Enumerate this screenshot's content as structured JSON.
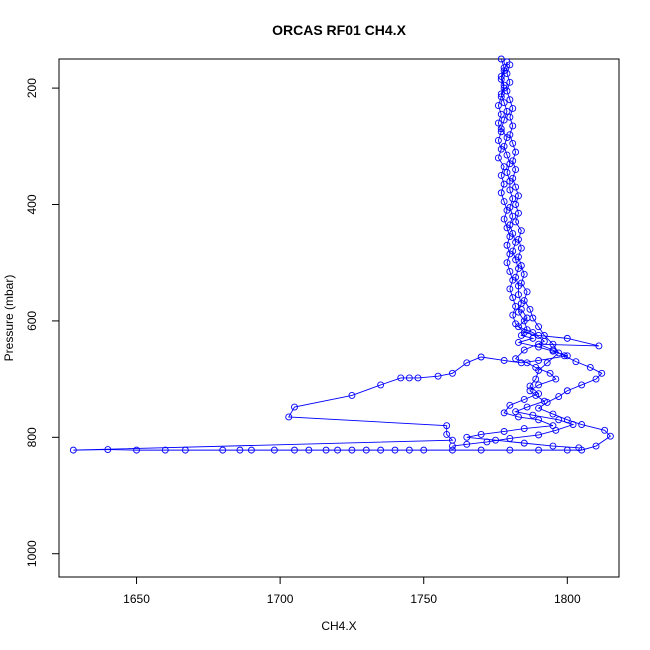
{
  "chart_data": {
    "type": "line",
    "title": "ORCAS RF01 CH4.X",
    "xlabel": "CH4.X",
    "ylabel": "Pressure (mbar)",
    "xlim": [
      1623,
      1818
    ],
    "ylim": [
      1040,
      150
    ],
    "y_reversed": true,
    "x_ticks": [
      1650,
      1700,
      1750,
      1800
    ],
    "y_ticks": [
      200,
      400,
      600,
      800,
      1000
    ],
    "series_color": "#0000ff",
    "marker": "open-circle",
    "grid": false,
    "legend": "none",
    "series": [
      {
        "points": [
          [
            1777,
            150
          ],
          [
            1778,
            165
          ],
          [
            1777,
            180
          ],
          [
            1778,
            195
          ],
          [
            1777,
            210
          ],
          [
            1778,
            225
          ],
          [
            1779,
            240
          ],
          [
            1778,
            255
          ],
          [
            1777,
            270
          ],
          [
            1779,
            285
          ],
          [
            1778,
            300
          ],
          [
            1779,
            315
          ],
          [
            1780,
            330
          ],
          [
            1779,
            345
          ],
          [
            1780,
            360
          ],
          [
            1780,
            375
          ],
          [
            1781,
            390
          ],
          [
            1780,
            405
          ],
          [
            1781,
            420
          ],
          [
            1780,
            435
          ],
          [
            1781,
            450
          ],
          [
            1782,
            465
          ],
          [
            1781,
            480
          ],
          [
            1782,
            495
          ],
          [
            1783,
            510
          ],
          [
            1782,
            525
          ],
          [
            1783,
            540
          ],
          [
            1783,
            555
          ],
          [
            1784,
            570
          ],
          [
            1783,
            585
          ],
          [
            1785,
            600
          ],
          [
            1786,
            615
          ],
          [
            1784,
            625
          ],
          [
            1788,
            630
          ],
          [
            1783,
            637
          ],
          [
            1790,
            645
          ],
          [
            1795,
            652
          ],
          [
            1800,
            660
          ],
          [
            1790,
            668
          ],
          [
            1784,
            672
          ],
          [
            1778,
            668
          ],
          [
            1770,
            662
          ],
          [
            1765,
            672
          ],
          [
            1760,
            690
          ],
          [
            1755,
            695
          ],
          [
            1748,
            698
          ],
          [
            1745,
            698
          ],
          [
            1742,
            698
          ],
          [
            1735,
            710
          ],
          [
            1725,
            728
          ],
          [
            1705,
            748
          ],
          [
            1703,
            765
          ],
          [
            1758,
            780
          ],
          [
            1758,
            795
          ],
          [
            1760,
            805
          ],
          [
            1628,
            822
          ],
          [
            1640,
            821
          ],
          [
            1650,
            822
          ],
          [
            1660,
            822
          ],
          [
            1667,
            822
          ],
          [
            1680,
            822
          ],
          [
            1686,
            822
          ],
          [
            1690,
            822
          ],
          [
            1698,
            822
          ],
          [
            1705,
            822
          ],
          [
            1710,
            822
          ],
          [
            1716,
            822
          ],
          [
            1720,
            822
          ],
          [
            1725,
            822
          ],
          [
            1730,
            822
          ],
          [
            1735,
            822
          ],
          [
            1740,
            822
          ],
          [
            1745,
            822
          ],
          [
            1750,
            822
          ],
          [
            1760,
            822
          ],
          [
            1770,
            822
          ],
          [
            1780,
            822
          ],
          [
            1790,
            822
          ],
          [
            1800,
            822
          ],
          [
            1805,
            822
          ],
          [
            1810,
            815
          ],
          [
            1815,
            798
          ],
          [
            1813,
            788
          ],
          [
            1805,
            778
          ],
          [
            1800,
            770
          ],
          [
            1795,
            760
          ],
          [
            1790,
            750
          ],
          [
            1793,
            740
          ],
          [
            1797,
            730
          ],
          [
            1800,
            720
          ],
          [
            1805,
            710
          ],
          [
            1810,
            700
          ],
          [
            1812,
            690
          ],
          [
            1808,
            680
          ],
          [
            1803,
            670
          ],
          [
            1799,
            660
          ],
          [
            1795,
            650
          ],
          [
            1790,
            640
          ],
          [
            1811,
            643
          ],
          [
            1800,
            630
          ],
          [
            1790,
            625
          ],
          [
            1785,
            620
          ],
          [
            1782,
            605
          ],
          [
            1781,
            590
          ],
          [
            1782,
            575
          ],
          [
            1781,
            560
          ],
          [
            1780,
            545
          ],
          [
            1781,
            530
          ],
          [
            1780,
            515
          ],
          [
            1779,
            500
          ],
          [
            1780,
            485
          ],
          [
            1779,
            470
          ],
          [
            1780,
            455
          ],
          [
            1779,
            440
          ],
          [
            1778,
            425
          ],
          [
            1779,
            410
          ],
          [
            1778,
            395
          ],
          [
            1777,
            380
          ],
          [
            1778,
            365
          ],
          [
            1777,
            350
          ],
          [
            1778,
            335
          ],
          [
            1776,
            320
          ],
          [
            1777,
            305
          ],
          [
            1776,
            290
          ],
          [
            1777,
            275
          ],
          [
            1776,
            260
          ],
          [
            1777,
            245
          ],
          [
            1776,
            230
          ],
          [
            1777,
            215
          ],
          [
            1778,
            200
          ],
          [
            1777,
            185
          ],
          [
            1778,
            170
          ],
          [
            1779,
            155
          ]
        ]
      },
      {
        "points": [
          [
            1780,
            160
          ],
          [
            1779,
            175
          ],
          [
            1780,
            190
          ],
          [
            1779,
            205
          ],
          [
            1780,
            220
          ],
          [
            1781,
            235
          ],
          [
            1780,
            250
          ],
          [
            1781,
            265
          ],
          [
            1780,
            280
          ],
          [
            1781,
            295
          ],
          [
            1782,
            310
          ],
          [
            1781,
            325
          ],
          [
            1782,
            340
          ],
          [
            1781,
            355
          ],
          [
            1782,
            370
          ],
          [
            1783,
            385
          ],
          [
            1782,
            400
          ],
          [
            1783,
            415
          ],
          [
            1782,
            430
          ],
          [
            1784,
            445
          ],
          [
            1783,
            460
          ],
          [
            1784,
            475
          ],
          [
            1783,
            490
          ],
          [
            1784,
            505
          ],
          [
            1785,
            520
          ],
          [
            1784,
            535
          ],
          [
            1786,
            550
          ],
          [
            1785,
            565
          ],
          [
            1787,
            580
          ],
          [
            1788,
            595
          ],
          [
            1790,
            610
          ],
          [
            1792,
            625
          ],
          [
            1795,
            640
          ],
          [
            1797,
            655
          ],
          [
            1793,
            672
          ],
          [
            1790,
            685
          ],
          [
            1789,
            700
          ],
          [
            1787,
            712
          ],
          [
            1790,
            725
          ],
          [
            1785,
            735
          ],
          [
            1780,
            745
          ],
          [
            1778,
            758
          ],
          [
            1783,
            765
          ],
          [
            1790,
            770
          ],
          [
            1795,
            780
          ],
          [
            1785,
            785
          ],
          [
            1778,
            790
          ],
          [
            1770,
            795
          ],
          [
            1765,
            800
          ],
          [
            1775,
            805
          ],
          [
            1785,
            810
          ],
          [
            1795,
            815
          ],
          [
            1804,
            818
          ]
        ]
      },
      {
        "points": [
          [
            1784,
            580
          ],
          [
            1786,
            595
          ],
          [
            1783,
            610
          ],
          [
            1788,
            620
          ],
          [
            1792,
            635
          ],
          [
            1785,
            650
          ],
          [
            1782,
            665
          ],
          [
            1786,
            672
          ],
          [
            1789,
            680
          ],
          [
            1794,
            690
          ],
          [
            1796,
            700
          ],
          [
            1790,
            710
          ],
          [
            1787,
            720
          ],
          [
            1789,
            728
          ],
          [
            1792,
            738
          ],
          [
            1786,
            748
          ],
          [
            1782,
            756
          ],
          [
            1788,
            762
          ],
          [
            1797,
            770
          ],
          [
            1802,
            778
          ],
          [
            1796,
            788
          ],
          [
            1790,
            796
          ],
          [
            1780,
            802
          ],
          [
            1772,
            808
          ],
          [
            1765,
            812
          ],
          [
            1760,
            815
          ]
        ]
      }
    ]
  }
}
